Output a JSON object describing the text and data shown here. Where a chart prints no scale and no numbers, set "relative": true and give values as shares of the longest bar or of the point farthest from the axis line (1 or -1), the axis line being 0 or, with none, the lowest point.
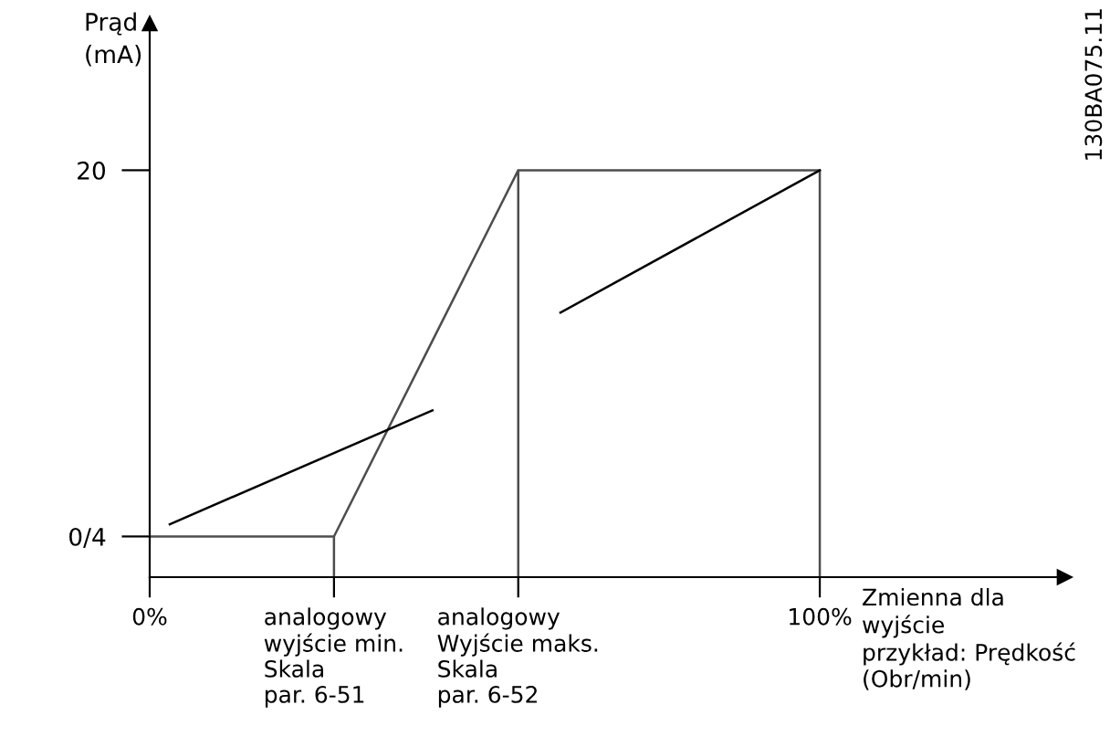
{
  "chart_data": {
    "type": "line",
    "ylabel": "Prąd\n(mA)",
    "xlabel": "Zmienna dla\nwyjście\nprzykład: Prędkość\n(Obr/min)",
    "relative": true,
    "annotations": [
      "130BA075.11",
      "0/4",
      "20"
    ],
    "xlim": [
      0,
      136.5
    ],
    "xticks": [
      {
        "value": 0,
        "label": "0%"
      },
      {
        "value": 27.5,
        "label": "analogowy\nwyjście min.\nSkala\npar. 6-51"
      },
      {
        "value": 55,
        "label": "analogowy\nWyjście maks.\nSkala\npar. 6-52"
      },
      {
        "value": 100,
        "label": "100%"
      }
    ],
    "grid": false,
    "legend": false,
    "marker": "none",
    "line_style": "solid",
    "series": [
      {
        "color": "#4d4d4d",
        "x": [
          0,
          27.5,
          27.5,
          27.5,
          55,
          55,
          55,
          100,
          100
        ],
        "values": [
          0.1,
          0.1,
          0,
          0.1,
          1,
          0,
          1,
          1,
          0
        ]
      },
      {
        "color": "#000000",
        "x": [
          3.0,
          42.2
        ],
        "values": [
          0.13,
          0.41
        ]
      },
      {
        "color": "#000000",
        "x": [
          61.3,
          100
        ],
        "values": [
          0.65,
          1
        ]
      }
    ]
  }
}
